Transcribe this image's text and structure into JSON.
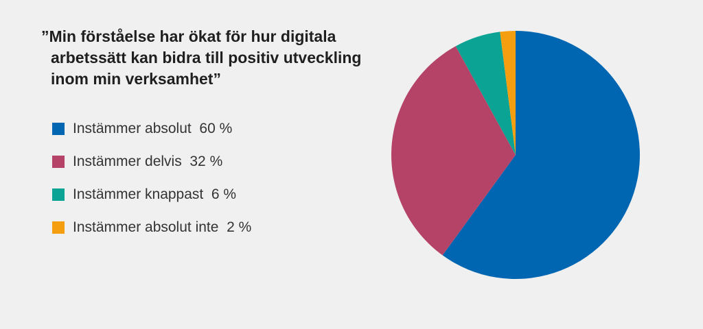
{
  "chart_data": {
    "type": "pie",
    "title_lines": [
      "”Min förståelse har ökat för hur digitala",
      "arbetssätt kan bidra till positiv utveckling",
      "inom min verksamhet”"
    ],
    "categories": [
      "Instämmer absolut",
      "Instämmer delvis",
      "Instämmer knappast",
      "Instämmer absolut inte"
    ],
    "values": [
      60,
      32,
      6,
      2
    ],
    "legend_labels": [
      "Instämmer absolut  60 %",
      "Instämmer delvis  32 %",
      "Instämmer knappast  6 %",
      "Instämmer absolut inte  2 %"
    ],
    "colors": [
      "#0066b2",
      "#b54367",
      "#0aa394",
      "#f49e10"
    ],
    "legend_position": "left",
    "start_angle": "top, clockwise"
  }
}
